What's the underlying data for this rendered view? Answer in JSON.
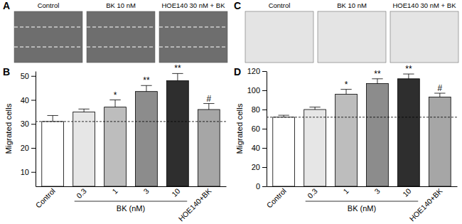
{
  "chart_data": [
    {
      "type": "bar",
      "title": "B",
      "ylabel": "Migrated cells",
      "xlabel": "BK (nM)",
      "categories": [
        "Control",
        "0.3",
        "1",
        "3",
        "10",
        "HOE140+BK"
      ],
      "values": [
        31,
        35,
        37,
        43.5,
        48,
        36
      ],
      "errors": [
        2.5,
        1.2,
        3,
        2.5,
        3,
        2.5
      ],
      "annotations": [
        null,
        null,
        "*",
        "**",
        "**",
        "#"
      ],
      "colors": [
        "#ffffff",
        "#e6e6e6",
        "#bdbdbd",
        "#8c8c8c",
        "#2e2e2e",
        "#a6a6a6"
      ],
      "ylim": [
        4,
        52
      ],
      "yticks": [
        10,
        20,
        30,
        40,
        50
      ]
    },
    {
      "type": "bar",
      "title": "D",
      "ylabel": "Migrated cells",
      "xlabel": "BK (nM)",
      "categories": [
        "Control",
        "0.3",
        "1",
        "3",
        "10",
        "HOE140+BK"
      ],
      "values": [
        72,
        80,
        96,
        107,
        112,
        93
      ],
      "errors": [
        2,
        2.5,
        5,
        5,
        5,
        4
      ],
      "annotations": [
        null,
        null,
        "*",
        "**",
        "**",
        "#"
      ],
      "colors": [
        "#ffffff",
        "#e6e6e6",
        "#bdbdbd",
        "#8c8c8c",
        "#2e2e2e",
        "#a6a6a6"
      ],
      "ylim": [
        0,
        120
      ],
      "yticks": [
        0,
        20,
        40,
        60,
        80,
        100,
        120
      ]
    }
  ],
  "images": [
    {
      "label": "A",
      "captions": [
        "Control",
        "BK 10 nM",
        "HOE140 30 nM + BK"
      ]
    },
    {
      "label": "C",
      "captions": [
        "Control",
        "BK 10 nM",
        "HOE140 30 nM + BK"
      ]
    }
  ]
}
